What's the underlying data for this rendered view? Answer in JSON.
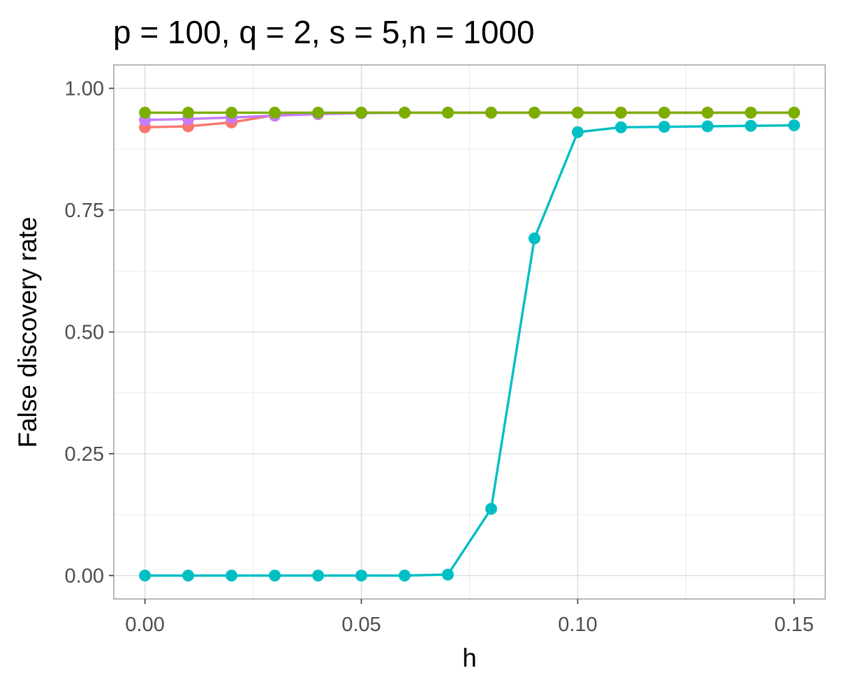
{
  "chart_data": {
    "type": "line",
    "title": "p = 100, q = 2, s = 5,n = 1000",
    "xlabel": "h",
    "ylabel": "False discovery rate",
    "x": [
      0.0,
      0.01,
      0.02,
      0.03,
      0.04,
      0.05,
      0.06,
      0.07,
      0.08,
      0.09,
      0.1,
      0.11,
      0.12,
      0.13,
      0.14,
      0.15
    ],
    "xlim": [
      -0.0072,
      0.1572
    ],
    "ylim": [
      -0.048,
      1.048
    ],
    "x_ticks": [
      0.0,
      0.05,
      0.1,
      0.15
    ],
    "x_tick_labels": [
      "0.00",
      "0.05",
      "0.10",
      "0.15"
    ],
    "x_minor_ticks": [
      0.025,
      0.075,
      0.125
    ],
    "y_ticks": [
      0.0,
      0.25,
      0.5,
      0.75,
      1.0
    ],
    "y_tick_labels": [
      "0.00",
      "0.25",
      "0.50",
      "0.75",
      "1.00"
    ],
    "y_minor_ticks": [
      0.125,
      0.375,
      0.625,
      0.875
    ],
    "grid": true,
    "legend": "none",
    "series": [
      {
        "color": "#F8766D",
        "values": [
          0.92,
          0.922,
          0.93,
          0.945,
          0.948,
          0.95,
          0.95,
          0.95,
          0.95,
          0.95,
          0.95,
          0.95,
          0.95,
          0.95,
          0.95,
          0.95
        ]
      },
      {
        "color": "#00BFC4",
        "values": [
          0.0,
          0.0,
          0.0,
          0.0,
          0.0,
          0.0,
          0.0,
          0.002,
          0.137,
          0.692,
          0.91,
          0.92,
          0.921,
          0.922,
          0.923,
          0.924
        ]
      },
      {
        "color": "#C77CFF",
        "values": [
          0.935,
          0.937,
          0.94,
          0.944,
          0.947,
          0.949,
          0.95,
          0.95,
          0.95,
          0.95,
          0.95,
          0.95,
          0.95,
          0.95,
          0.95,
          0.95
        ]
      },
      {
        "color": "#7CAE00",
        "values": [
          0.95,
          0.95,
          0.95,
          0.95,
          0.95,
          0.95,
          0.95,
          0.95,
          0.95,
          0.95,
          0.95,
          0.95,
          0.95,
          0.95,
          0.95,
          0.95
        ]
      }
    ]
  }
}
